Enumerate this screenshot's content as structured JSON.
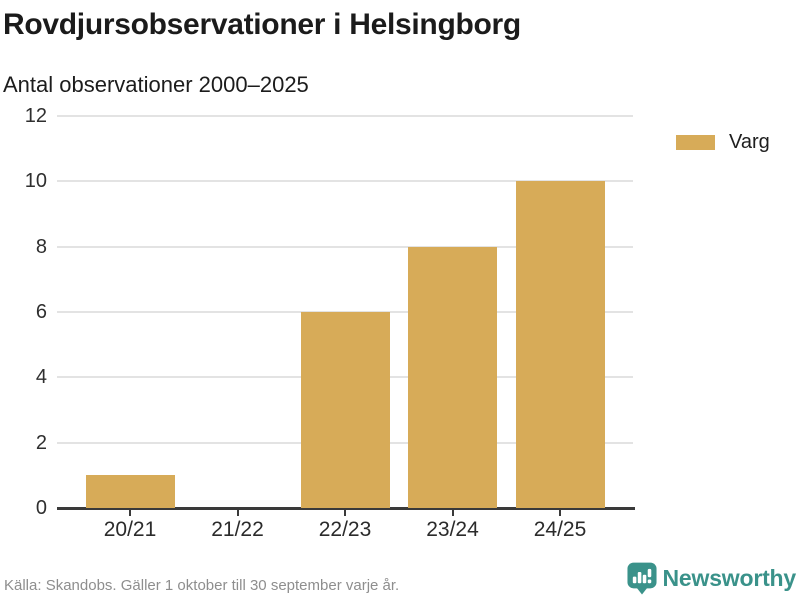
{
  "header": {
    "title": "Rovdjursobservationer i Helsingborg",
    "subtitle": "Antal observationer 2000–2025"
  },
  "legend": {
    "items": [
      {
        "label": "Varg",
        "color": "#D7AB58"
      }
    ]
  },
  "footer": {
    "source": "Källa: Skandobs. Gäller 1 oktober till 30 september varje år.",
    "brand": "Newsworthy"
  },
  "colors": {
    "bar": "#D7AB58",
    "brand_teal": "#3A928A",
    "axis": "#3a3a3a",
    "grid": "#e3e3e3",
    "tick_label": "#2f2f2f",
    "source_text": "#8e8e8e"
  },
  "chart_data": {
    "type": "bar",
    "categories": [
      "20/21",
      "21/22",
      "22/23",
      "23/24",
      "24/25"
    ],
    "series": [
      {
        "name": "Varg",
        "color": "#D7AB58",
        "values": [
          1,
          0,
          6,
          8,
          10
        ]
      }
    ],
    "title": "Rovdjursobservationer i Helsingborg",
    "subtitle": "Antal observationer 2000–2025",
    "xlabel": "",
    "ylabel": "",
    "ylim": [
      0,
      12
    ],
    "yticks": [
      0,
      2,
      4,
      6,
      8,
      10,
      12
    ],
    "grid": "horizontal",
    "legend_position": "right"
  }
}
